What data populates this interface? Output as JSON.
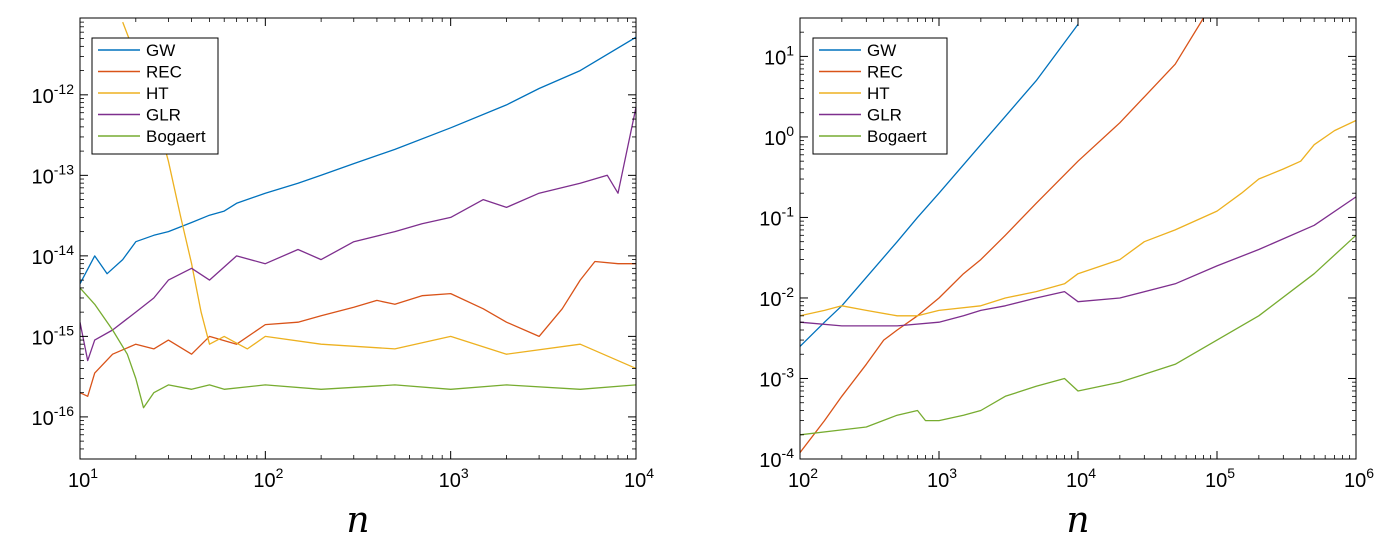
{
  "chart_data": [
    {
      "type": "line",
      "xlabel": "n",
      "x_scale": "log",
      "y_scale": "log",
      "xlim": [
        10,
        10000
      ],
      "ylim": [
        3e-17,
        9e-12
      ],
      "x_ticks": [
        {
          "value": 10,
          "base": "10",
          "exp": "1"
        },
        {
          "value": 100,
          "base": "10",
          "exp": "2"
        },
        {
          "value": 1000,
          "base": "10",
          "exp": "3"
        },
        {
          "value": 10000,
          "base": "10",
          "exp": "4"
        }
      ],
      "y_ticks": [
        {
          "value": 1e-16,
          "base": "10",
          "exp": "-16"
        },
        {
          "value": 1e-15,
          "base": "10",
          "exp": "-15"
        },
        {
          "value": 1e-14,
          "base": "10",
          "exp": "-14"
        },
        {
          "value": 1e-13,
          "base": "10",
          "exp": "-13"
        },
        {
          "value": 1e-12,
          "base": "10",
          "exp": "-12"
        }
      ],
      "legend_position": "top-left",
      "series": [
        {
          "name": "GW",
          "color": "#0072bd",
          "x": [
            10,
            12,
            14,
            17,
            20,
            25,
            30,
            40,
            50,
            60,
            70,
            100,
            150,
            200,
            300,
            500,
            1000,
            2000,
            3000,
            5000,
            10000
          ],
          "y": [
            4.5e-15,
            1e-14,
            6e-15,
            9e-15,
            1.5e-14,
            1.8e-14,
            2e-14,
            2.6e-14,
            3.2e-14,
            3.6e-14,
            4.5e-14,
            6e-14,
            8e-14,
            1e-13,
            1.4e-13,
            2.1e-13,
            3.9e-13,
            7.5e-13,
            1.2e-12,
            2e-12,
            5.2e-12
          ]
        },
        {
          "name": "REC",
          "color": "#d95319",
          "x": [
            10,
            11,
            12,
            15,
            20,
            25,
            30,
            40,
            50,
            70,
            100,
            150,
            200,
            300,
            400,
            500,
            700,
            1000,
            1500,
            2000,
            3000,
            4000,
            5000,
            6000,
            8000,
            10000
          ],
          "y": [
            2e-16,
            1.8e-16,
            3.5e-16,
            6e-16,
            8e-16,
            7e-16,
            9e-16,
            6e-16,
            1e-15,
            8e-16,
            1.4e-15,
            1.5e-15,
            1.8e-15,
            2.3e-15,
            2.8e-15,
            2.5e-15,
            3.2e-15,
            3.4e-15,
            2.2e-15,
            1.5e-15,
            1e-15,
            2.2e-15,
            5e-15,
            8.5e-15,
            8e-15,
            8e-15
          ]
        },
        {
          "name": "HT",
          "color": "#edb120",
          "x": [
            17,
            20,
            25,
            30,
            35,
            40,
            45,
            50,
            60,
            80,
            100,
            200,
            500,
            1000,
            2000,
            5000,
            10000
          ],
          "y": [
            8e-12,
            3e-12,
            7e-13,
            1.5e-13,
            3e-14,
            8e-15,
            2e-15,
            8e-16,
            1e-15,
            7e-16,
            1e-15,
            8e-16,
            7e-16,
            1e-15,
            6e-16,
            8e-16,
            4e-16
          ]
        },
        {
          "name": "GLR",
          "color": "#7e2f8e",
          "x": [
            10,
            11,
            12,
            15,
            20,
            25,
            30,
            40,
            50,
            70,
            100,
            150,
            200,
            300,
            500,
            700,
            1000,
            1500,
            2000,
            3000,
            5000,
            7000,
            8000,
            10000
          ],
          "y": [
            1.5e-15,
            5e-16,
            9e-16,
            1.2e-15,
            2e-15,
            3e-15,
            5e-15,
            7e-15,
            5e-15,
            1e-14,
            8e-15,
            1.2e-14,
            9e-15,
            1.5e-14,
            2e-14,
            2.5e-14,
            3e-14,
            5e-14,
            4e-14,
            6e-14,
            8e-14,
            1e-13,
            6e-14,
            7e-13
          ]
        },
        {
          "name": "Bogaert",
          "color": "#77ac30",
          "x": [
            10,
            12,
            15,
            18,
            20,
            22,
            25,
            30,
            40,
            50,
            60,
            100,
            200,
            500,
            1000,
            2000,
            5000,
            10000
          ],
          "y": [
            4e-15,
            2.5e-15,
            1.2e-15,
            6e-16,
            3e-16,
            1.3e-16,
            2e-16,
            2.5e-16,
            2.2e-16,
            2.5e-16,
            2.2e-16,
            2.5e-16,
            2.2e-16,
            2.5e-16,
            2.2e-16,
            2.5e-16,
            2.2e-16,
            2.5e-16
          ]
        }
      ]
    },
    {
      "type": "line",
      "xlabel": "n",
      "x_scale": "log",
      "y_scale": "log",
      "xlim": [
        100,
        1000000
      ],
      "ylim": [
        0.0001,
        30
      ],
      "x_ticks": [
        {
          "value": 100,
          "base": "10",
          "exp": "2"
        },
        {
          "value": 1000,
          "base": "10",
          "exp": "3"
        },
        {
          "value": 10000,
          "base": "10",
          "exp": "4"
        },
        {
          "value": 100000,
          "base": "10",
          "exp": "5"
        },
        {
          "value": 1000000,
          "base": "10",
          "exp": "6"
        }
      ],
      "y_ticks": [
        {
          "value": 0.0001,
          "base": "10",
          "exp": "-4"
        },
        {
          "value": 0.001,
          "base": "10",
          "exp": "-3"
        },
        {
          "value": 0.01,
          "base": "10",
          "exp": "-2"
        },
        {
          "value": 0.1,
          "base": "10",
          "exp": "-1"
        },
        {
          "value": 1,
          "base": "10",
          "exp": "0"
        },
        {
          "value": 10,
          "base": "10",
          "exp": "1"
        }
      ],
      "legend_position": "top-left",
      "series": [
        {
          "name": "GW",
          "color": "#0072bd",
          "x": [
            100,
            150,
            200,
            300,
            500,
            700,
            1000,
            2000,
            3000,
            5000,
            10000
          ],
          "y": [
            0.0025,
            0.005,
            0.008,
            0.018,
            0.05,
            0.1,
            0.2,
            0.8,
            1.8,
            5,
            25
          ]
        },
        {
          "name": "REC",
          "color": "#d95319",
          "x": [
            100,
            150,
            200,
            300,
            400,
            500,
            700,
            1000,
            1500,
            2000,
            3000,
            5000,
            10000,
            20000,
            50000,
            80000
          ],
          "y": [
            0.00012,
            0.0003,
            0.0006,
            0.0015,
            0.003,
            0.004,
            0.006,
            0.01,
            0.02,
            0.03,
            0.06,
            0.15,
            0.5,
            1.5,
            8,
            30
          ]
        },
        {
          "name": "HT",
          "color": "#edb120",
          "x": [
            100,
            150,
            200,
            300,
            500,
            700,
            1000,
            2000,
            3000,
            5000,
            8000,
            10000,
            20000,
            30000,
            50000,
            100000,
            150000,
            200000,
            300000,
            400000,
            500000,
            700000,
            1000000
          ],
          "y": [
            0.006,
            0.007,
            0.008,
            0.007,
            0.006,
            0.006,
            0.007,
            0.008,
            0.01,
            0.012,
            0.015,
            0.02,
            0.03,
            0.05,
            0.07,
            0.12,
            0.2,
            0.3,
            0.4,
            0.5,
            0.8,
            1.2,
            1.6
          ]
        },
        {
          "name": "GLR",
          "color": "#7e2f8e",
          "x": [
            100,
            200,
            500,
            1000,
            1500,
            2000,
            3000,
            5000,
            8000,
            10000,
            20000,
            50000,
            100000,
            200000,
            500000,
            1000000
          ],
          "y": [
            0.005,
            0.0045,
            0.0045,
            0.005,
            0.006,
            0.007,
            0.008,
            0.01,
            0.012,
            0.009,
            0.01,
            0.015,
            0.025,
            0.04,
            0.08,
            0.18
          ]
        },
        {
          "name": "Bogaert",
          "color": "#77ac30",
          "x": [
            100,
            200,
            300,
            500,
            700,
            800,
            1000,
            1500,
            2000,
            3000,
            5000,
            8000,
            10000,
            20000,
            50000,
            100000,
            200000,
            500000,
            1000000
          ],
          "y": [
            0.0002,
            0.00023,
            0.00025,
            0.00035,
            0.0004,
            0.0003,
            0.0003,
            0.00035,
            0.0004,
            0.0006,
            0.0008,
            0.001,
            0.0007,
            0.0009,
            0.0015,
            0.003,
            0.006,
            0.02,
            0.06
          ]
        }
      ]
    }
  ]
}
